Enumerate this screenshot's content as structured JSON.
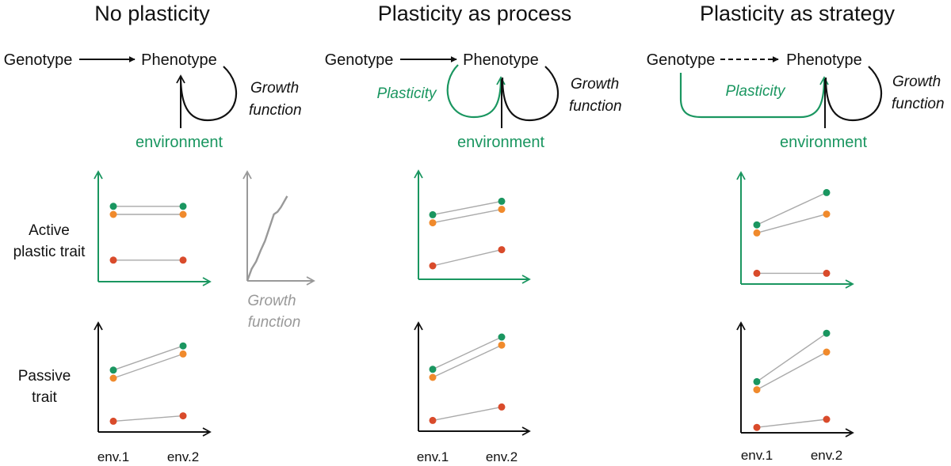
{
  "colors": {
    "green": "#1a9660",
    "orange": "#f08a2c",
    "red": "#d94b2b",
    "black": "#111111",
    "gray": "#999999",
    "line_gray": "#aaaaaa"
  },
  "panels": [
    {
      "title": "No plasticity",
      "genotype": "Genotype",
      "phenotype": "Phenotype",
      "environment": "environment",
      "growth_function_line1": "Growth",
      "growth_function_line2": "function",
      "genotype_link": "solid"
    },
    {
      "title": "Plasticity as process",
      "genotype": "Genotype",
      "phenotype": "Phenotype",
      "environment": "environment",
      "plasticity": "Plasticity",
      "growth_function_line1": "Growth",
      "growth_function_line2": "function",
      "genotype_link": "solid"
    },
    {
      "title": "Plasticity as strategy",
      "genotype": "Genotype",
      "phenotype": "Phenotype",
      "environment": "environment",
      "plasticity": "Plasticity",
      "growth_function_line1": "Growth",
      "growth_function_line2": "function",
      "genotype_link": "dashed"
    }
  ],
  "row_labels": {
    "active_line1": "Active",
    "active_line2": "plastic trait",
    "passive_line1": "Passive",
    "passive_line2": "trait"
  },
  "growth_inset": {
    "label_line1": "Growth",
    "label_line2": "function"
  },
  "env_ticks": [
    "env.1",
    "env.2"
  ],
  "chart_data": [
    {
      "type": "line",
      "panel": "No plasticity",
      "row": "Active plastic trait",
      "categories": [
        "env.1",
        "env.2"
      ],
      "series": [
        {
          "color": "green",
          "values": [
            2.8,
            2.8
          ]
        },
        {
          "color": "orange",
          "values": [
            2.5,
            2.5
          ]
        },
        {
          "color": "red",
          "values": [
            0.8,
            0.8
          ]
        }
      ],
      "ylim": [
        0,
        4
      ]
    },
    {
      "type": "line",
      "panel": "No plasticity",
      "row": "Passive trait",
      "categories": [
        "env.1",
        "env.2"
      ],
      "series": [
        {
          "color": "green",
          "values": [
            2.3,
            3.2
          ]
        },
        {
          "color": "orange",
          "values": [
            2.0,
            2.9
          ]
        },
        {
          "color": "red",
          "values": [
            0.4,
            0.6
          ]
        }
      ],
      "ylim": [
        0,
        4
      ]
    },
    {
      "type": "line",
      "panel": "Plasticity as process",
      "row": "Active plastic trait",
      "categories": [
        "env.1",
        "env.2"
      ],
      "series": [
        {
          "color": "green",
          "values": [
            2.4,
            2.9
          ]
        },
        {
          "color": "orange",
          "values": [
            2.1,
            2.6
          ]
        },
        {
          "color": "red",
          "values": [
            0.5,
            1.1
          ]
        }
      ],
      "ylim": [
        0,
        4
      ]
    },
    {
      "type": "line",
      "panel": "Plasticity as process",
      "row": "Passive trait",
      "categories": [
        "env.1",
        "env.2"
      ],
      "series": [
        {
          "color": "green",
          "values": [
            2.3,
            3.5
          ]
        },
        {
          "color": "orange",
          "values": [
            2.0,
            3.2
          ]
        },
        {
          "color": "red",
          "values": [
            0.4,
            0.9
          ]
        }
      ],
      "ylim": [
        0,
        4
      ]
    },
    {
      "type": "line",
      "panel": "Plasticity as strategy",
      "row": "Active plastic trait",
      "categories": [
        "env.1",
        "env.2"
      ],
      "series": [
        {
          "color": "green",
          "values": [
            2.2,
            3.4
          ]
        },
        {
          "color": "orange",
          "values": [
            1.9,
            2.6
          ]
        },
        {
          "color": "red",
          "values": [
            0.4,
            0.4
          ]
        }
      ],
      "ylim": [
        0,
        4
      ]
    },
    {
      "type": "line",
      "panel": "Plasticity as strategy",
      "row": "Passive trait",
      "categories": [
        "env.1",
        "env.2"
      ],
      "series": [
        {
          "color": "green",
          "values": [
            1.9,
            3.7
          ]
        },
        {
          "color": "orange",
          "values": [
            1.6,
            3.0
          ]
        },
        {
          "color": "red",
          "values": [
            0.2,
            0.5
          ]
        }
      ],
      "ylim": [
        0,
        4
      ]
    },
    {
      "type": "line",
      "panel": "No plasticity",
      "row": "Growth function inset",
      "x": [
        0,
        0.5,
        1,
        1.5,
        2,
        2.5,
        3,
        3.4,
        3.8,
        4.5
      ],
      "values": [
        0,
        1,
        1.6,
        2.5,
        3.3,
        4.4,
        5.5,
        5.7,
        6.1,
        7.0
      ]
    }
  ]
}
